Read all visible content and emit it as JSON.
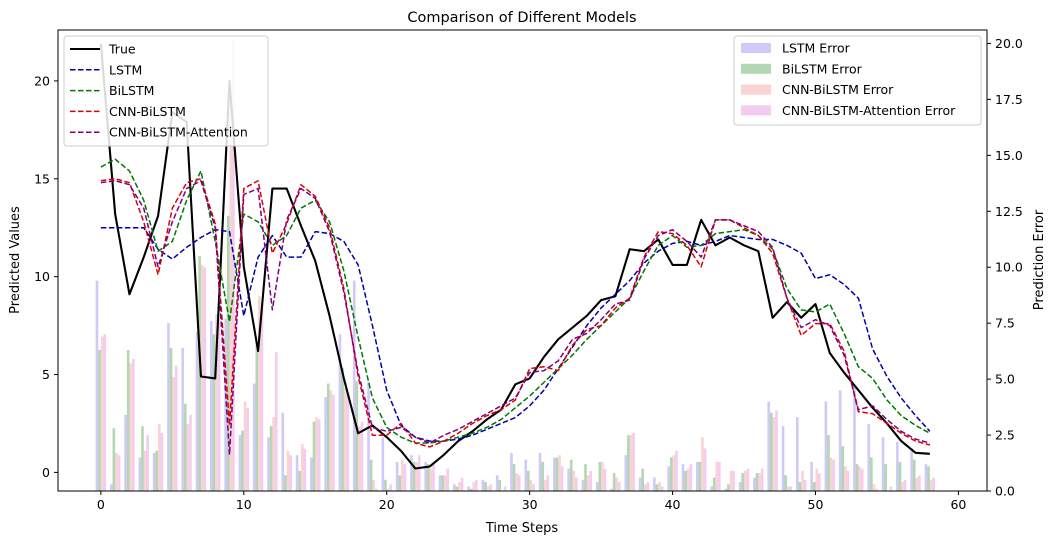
{
  "chart_data": {
    "type": "line",
    "title": "Comparison of Different Models",
    "xlabel": "Time Steps",
    "ylabel": "Predicted Values",
    "y2label": "Prediction Error",
    "xlim": [
      -3,
      62
    ],
    "ylim": [
      -0.95,
      22.6
    ],
    "y2lim": [
      0,
      20.6
    ],
    "xticks": [
      0,
      10,
      20,
      30,
      40,
      50,
      60
    ],
    "yticks": [
      0,
      5,
      10,
      15,
      20
    ],
    "y2ticks": [
      "0.0",
      "2.5",
      "5.0",
      "7.5",
      "10.0",
      "12.5",
      "15.0",
      "17.5",
      "20.0"
    ],
    "x": [
      0,
      1,
      2,
      3,
      4,
      5,
      6,
      7,
      8,
      9,
      10,
      11,
      12,
      13,
      14,
      15,
      16,
      17,
      18,
      19,
      20,
      21,
      22,
      23,
      24,
      25,
      26,
      27,
      28,
      29,
      30,
      31,
      32,
      33,
      34,
      35,
      36,
      37,
      38,
      39,
      40,
      41,
      42,
      43,
      44,
      45,
      46,
      47,
      48,
      49,
      50,
      51,
      52,
      53,
      54,
      55,
      56,
      57,
      58
    ],
    "series": [
      {
        "name": "True",
        "color": "#000000",
        "style": "solid",
        "values": [
          21.9,
          13.2,
          9.1,
          11.0,
          13.1,
          18.4,
          17.9,
          4.9,
          4.8,
          20.0,
          10.5,
          6.2,
          14.5,
          14.5,
          12.6,
          10.8,
          8.0,
          4.8,
          2.0,
          2.4,
          1.8,
          1.1,
          0.2,
          0.3,
          0.9,
          1.6,
          2.1,
          2.7,
          3.2,
          4.5,
          4.8,
          5.9,
          6.8,
          7.4,
          8.0,
          8.8,
          9.0,
          11.4,
          11.3,
          11.9,
          10.6,
          10.6,
          12.9,
          11.6,
          12.0,
          11.6,
          11.3,
          7.9,
          8.7,
          7.9,
          8.6,
          6.1,
          5.1,
          4.2,
          3.3,
          2.5,
          1.6,
          1.0,
          0.95
        ]
      },
      {
        "name": "LSTM",
        "color": "#0000aa",
        "style": "dashed",
        "values": [
          12.5,
          12.5,
          12.5,
          12.5,
          11.4,
          10.9,
          11.5,
          12.0,
          12.4,
          12.3,
          8.0,
          11.0,
          12.1,
          11.0,
          11.0,
          12.3,
          12.2,
          11.8,
          10.6,
          7.5,
          4.2,
          2.4,
          1.8,
          1.6,
          1.6,
          1.7,
          1.9,
          2.2,
          2.5,
          2.8,
          3.4,
          4.2,
          5.3,
          6.4,
          7.5,
          8.4,
          9.1,
          9.8,
          10.7,
          11.3,
          11.7,
          11.8,
          11.6,
          11.8,
          12.1,
          12.0,
          11.9,
          11.9,
          11.6,
          11.2,
          9.9,
          10.1,
          9.6,
          8.9,
          6.3,
          4.9,
          3.8,
          2.9,
          2.1
        ]
      },
      {
        "name": "BiLSTM",
        "color": "#007700",
        "style": "dashed",
        "values": [
          15.6,
          16.0,
          15.4,
          13.9,
          11.3,
          11.8,
          13.9,
          15.4,
          11.8,
          7.7,
          13.2,
          12.8,
          11.6,
          12.1,
          13.5,
          13.9,
          12.8,
          10.3,
          6.9,
          3.8,
          2.3,
          1.8,
          1.5,
          1.5,
          1.6,
          1.8,
          2.0,
          2.3,
          2.7,
          3.3,
          3.9,
          4.6,
          5.3,
          6.0,
          6.8,
          7.5,
          8.2,
          8.9,
          10.3,
          11.6,
          12.1,
          11.5,
          11.6,
          12.2,
          12.3,
          12.4,
          12.1,
          11.4,
          9.4,
          8.3,
          8.2,
          8.6,
          7.1,
          5.4,
          4.8,
          3.7,
          2.9,
          2.4,
          2.0
        ]
      },
      {
        "name": "CNN-BiLSTM",
        "color": "#dd0000",
        "style": "dashed",
        "values": [
          14.9,
          15.0,
          14.8,
          12.8,
          10.1,
          13.5,
          14.8,
          15.0,
          12.7,
          2.4,
          14.5,
          14.9,
          11.2,
          12.7,
          14.7,
          14.1,
          12.5,
          9.4,
          4.9,
          1.9,
          1.9,
          2.5,
          1.5,
          1.3,
          1.6,
          2.0,
          2.5,
          2.9,
          3.2,
          3.7,
          5.3,
          5.4,
          5.2,
          6.5,
          7.3,
          7.5,
          8.4,
          8.9,
          11.0,
          12.3,
          12.2,
          11.6,
          10.5,
          12.9,
          12.9,
          12.5,
          12.1,
          11.2,
          8.9,
          7.0,
          7.6,
          7.6,
          6.2,
          3.1,
          3.0,
          2.5,
          2.0,
          1.6,
          1.4
        ]
      },
      {
        "name": "CNN-BiLSTM-Attention",
        "color": "#800080",
        "style": "dashed",
        "values": [
          14.8,
          14.9,
          14.7,
          13.5,
          10.5,
          12.8,
          14.5,
          14.9,
          12.5,
          0.9,
          14.2,
          14.5,
          8.3,
          12.9,
          14.5,
          14.0,
          12.3,
          9.2,
          5.1,
          2.3,
          2.1,
          2.3,
          1.8,
          1.5,
          1.9,
          2.2,
          2.6,
          3.0,
          3.4,
          3.8,
          5.1,
          5.2,
          5.7,
          6.8,
          7.1,
          7.8,
          8.6,
          8.8,
          10.9,
          12.1,
          12.4,
          11.8,
          11.0,
          12.9,
          12.9,
          12.6,
          12.3,
          11.5,
          8.9,
          7.4,
          7.8,
          7.5,
          6.0,
          3.2,
          3.4,
          2.7,
          2.1,
          1.7,
          1.5
        ]
      }
    ],
    "error_series": [
      {
        "name": "LSTM Error",
        "color": "#7b68ee",
        "values": [
          9.4,
          0.3,
          3.4,
          1.5,
          1.7,
          7.5,
          6.4,
          7.1,
          7.6,
          7.7,
          2.5,
          4.8,
          2.4,
          3.5,
          1.6,
          1.5,
          4.2,
          7.0,
          9.4,
          4.9,
          2.4,
          1.3,
          1.6,
          1.3,
          0.7,
          0.3,
          0.2,
          0.5,
          0.7,
          1.7,
          1.4,
          1.7,
          1.5,
          1.0,
          0.5,
          0.4,
          0.1,
          1.6,
          0.6,
          0.6,
          1.1,
          1.2,
          1.3,
          0.2,
          0.1,
          0.4,
          0.6,
          4.0,
          2.9,
          3.3,
          1.3,
          4.0,
          4.5,
          4.7,
          3.0,
          2.4,
          2.2,
          1.9,
          1.2
        ]
      },
      {
        "name": "BiLSTM Error",
        "color": "#228b22",
        "values": [
          6.3,
          2.8,
          6.3,
          2.9,
          1.8,
          6.4,
          3.9,
          10.5,
          7.0,
          12.3,
          2.7,
          6.6,
          2.9,
          0.7,
          0.9,
          3.1,
          4.8,
          5.5,
          4.9,
          1.4,
          0.5,
          0.7,
          1.3,
          1.2,
          0.7,
          0.2,
          0.1,
          0.4,
          0.5,
          1.2,
          0.9,
          1.3,
          1.5,
          1.4,
          1.2,
          1.3,
          0.8,
          2.5,
          1.0,
          0.3,
          1.5,
          0.9,
          1.3,
          0.6,
          0.3,
          0.8,
          0.8,
          3.5,
          0.7,
          0.4,
          0.4,
          2.5,
          2.0,
          1.2,
          1.5,
          1.2,
          1.3,
          1.4,
          1.1
        ]
      },
      {
        "name": "CNN-BiLSTM Error",
        "color": "#f08080",
        "values": [
          6.9,
          1.7,
          5.7,
          1.8,
          3.0,
          5.1,
          3.0,
          10.1,
          7.9,
          17.6,
          4.0,
          8.7,
          3.3,
          1.8,
          2.1,
          3.3,
          4.5,
          4.6,
          2.9,
          0.5,
          0.1,
          1.4,
          1.3,
          1.0,
          0.7,
          0.4,
          0.4,
          0.2,
          0.0,
          0.8,
          0.5,
          0.5,
          1.6,
          0.9,
          0.7,
          1.3,
          0.6,
          2.5,
          0.3,
          0.4,
          1.6,
          1.0,
          2.4,
          1.3,
          0.9,
          0.9,
          0.8,
          3.3,
          0.2,
          0.9,
          1.0,
          1.5,
          1.1,
          1.1,
          0.3,
          0.0,
          0.4,
          0.6,
          0.5
        ]
      },
      {
        "name": "CNN-BiLSTM-Attention Error",
        "color": "#da70d6",
        "values": [
          7.0,
          1.6,
          5.9,
          2.5,
          2.6,
          5.6,
          3.4,
          10.0,
          7.7,
          20.1,
          3.7,
          8.3,
          6.2,
          1.6,
          1.9,
          3.2,
          4.3,
          4.4,
          3.1,
          0.1,
          0.3,
          1.2,
          1.6,
          1.2,
          1.0,
          0.6,
          0.5,
          0.3,
          0.2,
          0.7,
          0.3,
          0.7,
          1.1,
          0.6,
          0.9,
          1.0,
          0.4,
          2.6,
          0.4,
          0.2,
          1.8,
          1.2,
          1.9,
          1.3,
          0.9,
          1.0,
          1.0,
          3.6,
          0.2,
          0.5,
          0.8,
          1.4,
          0.9,
          1.0,
          0.1,
          0.2,
          0.5,
          0.7,
          0.6
        ]
      }
    ]
  }
}
